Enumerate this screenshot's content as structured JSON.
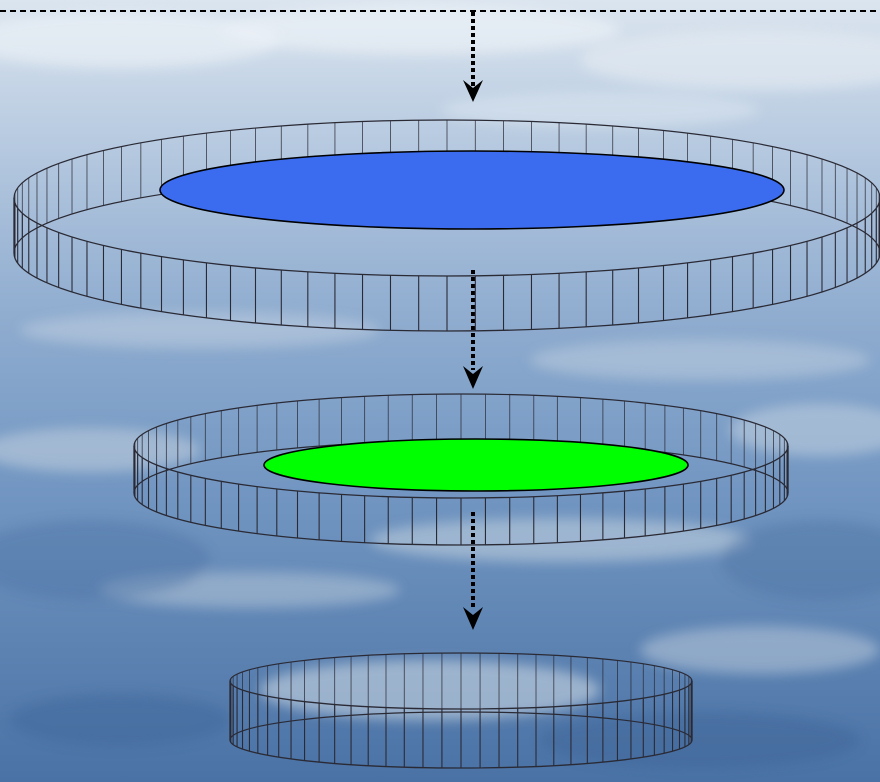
{
  "scene": {
    "background": "aerial-landscape-sky",
    "colors": {
      "sky_top": "#d9e3ee",
      "sky_mid": "#9fb8d4",
      "land_far": "#7f9fc4",
      "land_near": "#4f76a8",
      "fields": "#cfd9e2",
      "ring_stroke": "#2a2a35",
      "arrow": "#000000",
      "blue_disk": "#3b6cf0",
      "green_disk": "#00ff00"
    },
    "top_line": {
      "style": "dashed"
    },
    "arrows": [
      {
        "name": "arrow-down-icon-1",
        "style": "dotted"
      },
      {
        "name": "arrow-down-icon-2",
        "style": "dotted"
      },
      {
        "name": "arrow-down-icon-3",
        "style": "dotted"
      }
    ],
    "rings": [
      {
        "name": "ring-large",
        "disk": "blue",
        "slats": 96
      },
      {
        "name": "ring-medium",
        "disk": "green",
        "slats": 84
      },
      {
        "name": "ring-small",
        "disk": "none",
        "slats": 76
      }
    ]
  }
}
